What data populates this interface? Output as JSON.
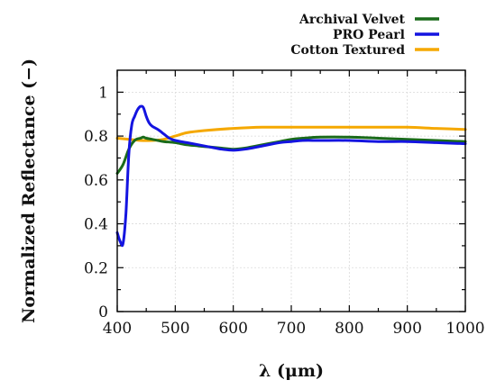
{
  "chart_data": {
    "type": "line",
    "xlabel": "λ (μm)",
    "ylabel": "Normalized Reflectance (−)",
    "xlim": [
      400,
      1000
    ],
    "ylim": [
      0,
      1.1
    ],
    "x_ticks": [
      400,
      500,
      600,
      700,
      800,
      900,
      1000
    ],
    "y_ticks": [
      0,
      0.2,
      0.4,
      0.6,
      0.8,
      1
    ],
    "y_tick_labels": [
      "0",
      "0.2",
      "0.4",
      "0.6",
      "0.8",
      "1"
    ],
    "grid": true,
    "legend_position": "top-right, outside plot",
    "series": [
      {
        "name": "Archival Velvet",
        "color": "#1a6b1a",
        "x": [
          400,
          410,
          420,
          430,
          440,
          445,
          450,
          460,
          470,
          480,
          500,
          520,
          540,
          560,
          580,
          600,
          620,
          650,
          680,
          700,
          720,
          750,
          800,
          850,
          900,
          950,
          1000
        ],
        "y": [
          0.63,
          0.67,
          0.74,
          0.78,
          0.79,
          0.795,
          0.79,
          0.785,
          0.78,
          0.775,
          0.77,
          0.76,
          0.755,
          0.75,
          0.745,
          0.74,
          0.745,
          0.76,
          0.775,
          0.785,
          0.79,
          0.795,
          0.795,
          0.79,
          0.785,
          0.78,
          0.775
        ]
      },
      {
        "name": "PRO Pearl",
        "color": "#1414e0",
        "x": [
          400,
          405,
          410,
          415,
          420,
          425,
          430,
          435,
          440,
          445,
          450,
          455,
          460,
          470,
          480,
          490,
          500,
          520,
          540,
          560,
          580,
          600,
          620,
          650,
          680,
          700,
          720,
          750,
          800,
          850,
          900,
          950,
          1000
        ],
        "y": [
          0.36,
          0.32,
          0.31,
          0.45,
          0.72,
          0.85,
          0.89,
          0.92,
          0.935,
          0.93,
          0.89,
          0.86,
          0.845,
          0.83,
          0.81,
          0.79,
          0.78,
          0.77,
          0.76,
          0.75,
          0.74,
          0.735,
          0.74,
          0.755,
          0.77,
          0.775,
          0.78,
          0.78,
          0.78,
          0.775,
          0.775,
          0.77,
          0.765
        ]
      },
      {
        "name": "Cotton Textured",
        "color": "#f5a800",
        "x": [
          400,
          420,
          440,
          460,
          480,
          500,
          520,
          550,
          600,
          650,
          700,
          750,
          800,
          850,
          900,
          950,
          1000
        ],
        "y": [
          0.79,
          0.785,
          0.78,
          0.78,
          0.785,
          0.8,
          0.815,
          0.825,
          0.835,
          0.84,
          0.84,
          0.84,
          0.84,
          0.84,
          0.84,
          0.835,
          0.83
        ]
      }
    ]
  }
}
